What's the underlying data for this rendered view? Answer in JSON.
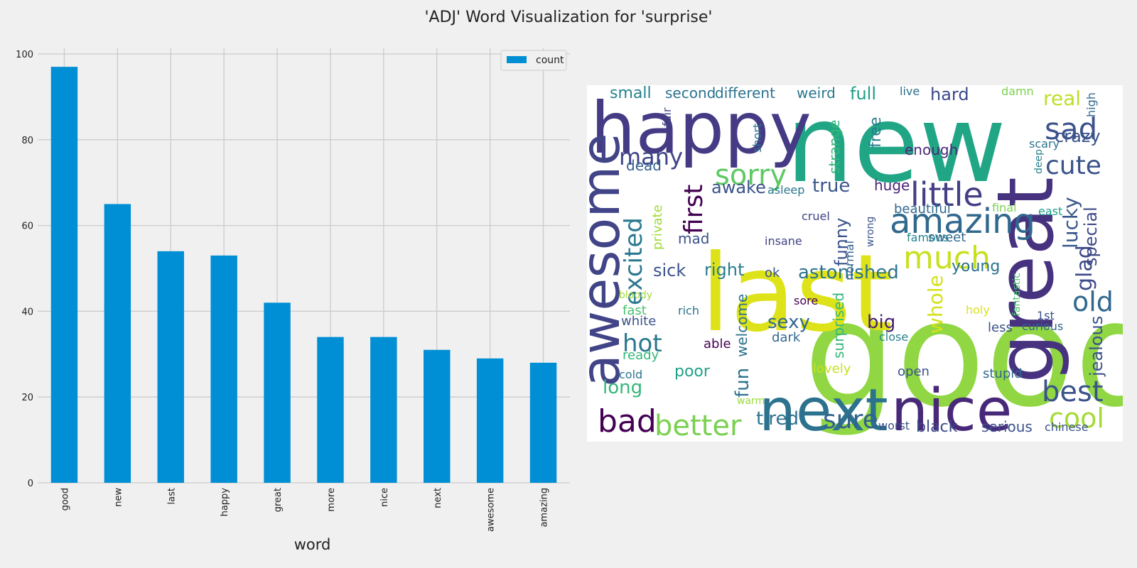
{
  "figure_title": "'ADJ' Word Visualization for 'surprise'",
  "colors": {
    "bar": "#008fd5",
    "cloud_bg": "#ffffff",
    "figure_bg": "#f0f0f0"
  },
  "chart_data": [
    {
      "type": "bar",
      "categories": [
        "good",
        "new",
        "last",
        "happy",
        "great",
        "more",
        "nice",
        "next",
        "awesome",
        "amazing"
      ],
      "series": [
        {
          "name": "count",
          "values": [
            97,
            65,
            54,
            53,
            42,
            34,
            34,
            31,
            29,
            28
          ]
        }
      ],
      "xlabel": "word",
      "ylabel": "",
      "ylim": [
        0,
        100
      ],
      "yticks": [
        0,
        20,
        40,
        60,
        80,
        100
      ],
      "grid": true,
      "legend": "top-right"
    },
    {
      "type": "wordcloud",
      "words": [
        {
          "text": "good",
          "color": "#90d743"
        },
        {
          "text": "new",
          "color": "#21a685"
        },
        {
          "text": "last",
          "color": "#dde318"
        },
        {
          "text": "happy",
          "color": "#443b84"
        },
        {
          "text": "great",
          "color": "#46327e"
        },
        {
          "text": "nice",
          "color": "#482878"
        },
        {
          "text": "next",
          "color": "#2c728e"
        },
        {
          "text": "awesome",
          "color": "#414487"
        },
        {
          "text": "amazing",
          "color": "#31688e"
        },
        {
          "text": "little",
          "color": "#433e85"
        },
        {
          "text": "sorry",
          "color": "#5ec962"
        },
        {
          "text": "much",
          "color": "#c8e020"
        },
        {
          "text": "sad",
          "color": "#3b528b"
        },
        {
          "text": "cute",
          "color": "#3b528b"
        },
        {
          "text": "bad",
          "color": "#440154"
        },
        {
          "text": "better",
          "color": "#7ad151"
        },
        {
          "text": "best",
          "color": "#3b528b"
        },
        {
          "text": "cool",
          "color": "#a5db36"
        },
        {
          "text": "excited",
          "color": "#2a788e"
        },
        {
          "text": "hot",
          "color": "#2a788e"
        },
        {
          "text": "first",
          "color": "#440154"
        },
        {
          "text": "old",
          "color": "#31688e"
        },
        {
          "text": "many",
          "color": "#404387"
        },
        {
          "text": "sure",
          "color": "#33638d"
        },
        {
          "text": "astonished",
          "color": "#2c728e"
        },
        {
          "text": "glad",
          "color": "#3e4a89"
        },
        {
          "text": "whole",
          "color": "#d2e21b"
        },
        {
          "text": "crazy",
          "color": "#3b528b"
        },
        {
          "text": "real",
          "color": "#bddf26"
        },
        {
          "text": "lucky",
          "color": "#38588c"
        },
        {
          "text": "special",
          "color": "#3e4989"
        },
        {
          "text": "jealous",
          "color": "#3b528b"
        },
        {
          "text": "sexy",
          "color": "#31688e"
        },
        {
          "text": "big",
          "color": "#482173"
        },
        {
          "text": "fun",
          "color": "#2c728e"
        },
        {
          "text": "funny",
          "color": "#3b528b"
        },
        {
          "text": "awake",
          "color": "#3b528b"
        },
        {
          "text": "right",
          "color": "#287d8e"
        },
        {
          "text": "sick",
          "color": "#3b528b"
        },
        {
          "text": "true",
          "color": "#39568c"
        },
        {
          "text": "tired",
          "color": "#2c728e"
        },
        {
          "text": "long",
          "color": "#35b779"
        },
        {
          "text": "poor",
          "color": "#1fa187"
        },
        {
          "text": "full",
          "color": "#1f9e89"
        },
        {
          "text": "hard",
          "color": "#3e4989"
        },
        {
          "text": "small",
          "color": "#26828e"
        },
        {
          "text": "second",
          "color": "#2c728e"
        },
        {
          "text": "different",
          "color": "#2c728e"
        },
        {
          "text": "weird",
          "color": "#2a788e"
        },
        {
          "text": "dead",
          "color": "#355f8d"
        },
        {
          "text": "young",
          "color": "#2c728e"
        },
        {
          "text": "black",
          "color": "#3e4989"
        },
        {
          "text": "huge",
          "color": "#482475"
        },
        {
          "text": "enough",
          "color": "#482878"
        },
        {
          "text": "free",
          "color": "#287d8e"
        },
        {
          "text": "strange",
          "color": "#35b779"
        },
        {
          "text": "surprised",
          "color": "#35b779"
        },
        {
          "text": "welcome",
          "color": "#2c728e"
        },
        {
          "text": "beautiful",
          "color": "#31688e"
        },
        {
          "text": "serious",
          "color": "#3b528b"
        },
        {
          "text": "lovely",
          "color": "#c8e020"
        },
        {
          "text": "stupid",
          "color": "#31688e"
        },
        {
          "text": "open",
          "color": "#3b528b"
        },
        {
          "text": "mad",
          "color": "#3b528b"
        },
        {
          "text": "private",
          "color": "#a0da39"
        },
        {
          "text": "dark",
          "color": "#31688e"
        },
        {
          "text": "fast",
          "color": "#4ac16d"
        },
        {
          "text": "ready",
          "color": "#35b779"
        },
        {
          "text": "less",
          "color": "#3b528b"
        },
        {
          "text": "ok",
          "color": "#3b528b"
        },
        {
          "text": "insane",
          "color": "#414487"
        },
        {
          "text": "sweet",
          "color": "#31688e"
        },
        {
          "text": "famous",
          "color": "#26828e"
        },
        {
          "text": "cruel",
          "color": "#404387"
        },
        {
          "text": "normal",
          "color": "#33638d"
        },
        {
          "text": "wrong",
          "color": "#3b528b"
        },
        {
          "text": "final",
          "color": "#7ad151"
        },
        {
          "text": "east",
          "color": "#1f9e89"
        },
        {
          "text": "asleep",
          "color": "#2a788e"
        },
        {
          "text": "deep",
          "color": "#26828e"
        },
        {
          "text": "scary",
          "color": "#2c728e"
        },
        {
          "text": "high",
          "color": "#31688e"
        },
        {
          "text": "damn",
          "color": "#7ad151"
        },
        {
          "text": "live",
          "color": "#2c728e"
        },
        {
          "text": "short",
          "color": "#2c728e"
        },
        {
          "text": "fair",
          "color": "#414487"
        },
        {
          "text": "bloody",
          "color": "#a0da39"
        },
        {
          "text": "white",
          "color": "#3b528b"
        },
        {
          "text": "rich",
          "color": "#2c728e"
        },
        {
          "text": "sore",
          "color": "#440154"
        },
        {
          "text": "able",
          "color": "#440154"
        },
        {
          "text": "close",
          "color": "#26828e"
        },
        {
          "text": "holy",
          "color": "#dde318"
        },
        {
          "text": "1st",
          "color": "#3b528b"
        },
        {
          "text": "curious",
          "color": "#31688e"
        },
        {
          "text": "fantastic",
          "color": "#4ac16d"
        },
        {
          "text": "cold",
          "color": "#2c728e"
        },
        {
          "text": "warm",
          "color": "#9bd93c"
        },
        {
          "text": "worst",
          "color": "#3b528b"
        },
        {
          "text": "chinese",
          "color": "#3b528b"
        }
      ]
    }
  ]
}
